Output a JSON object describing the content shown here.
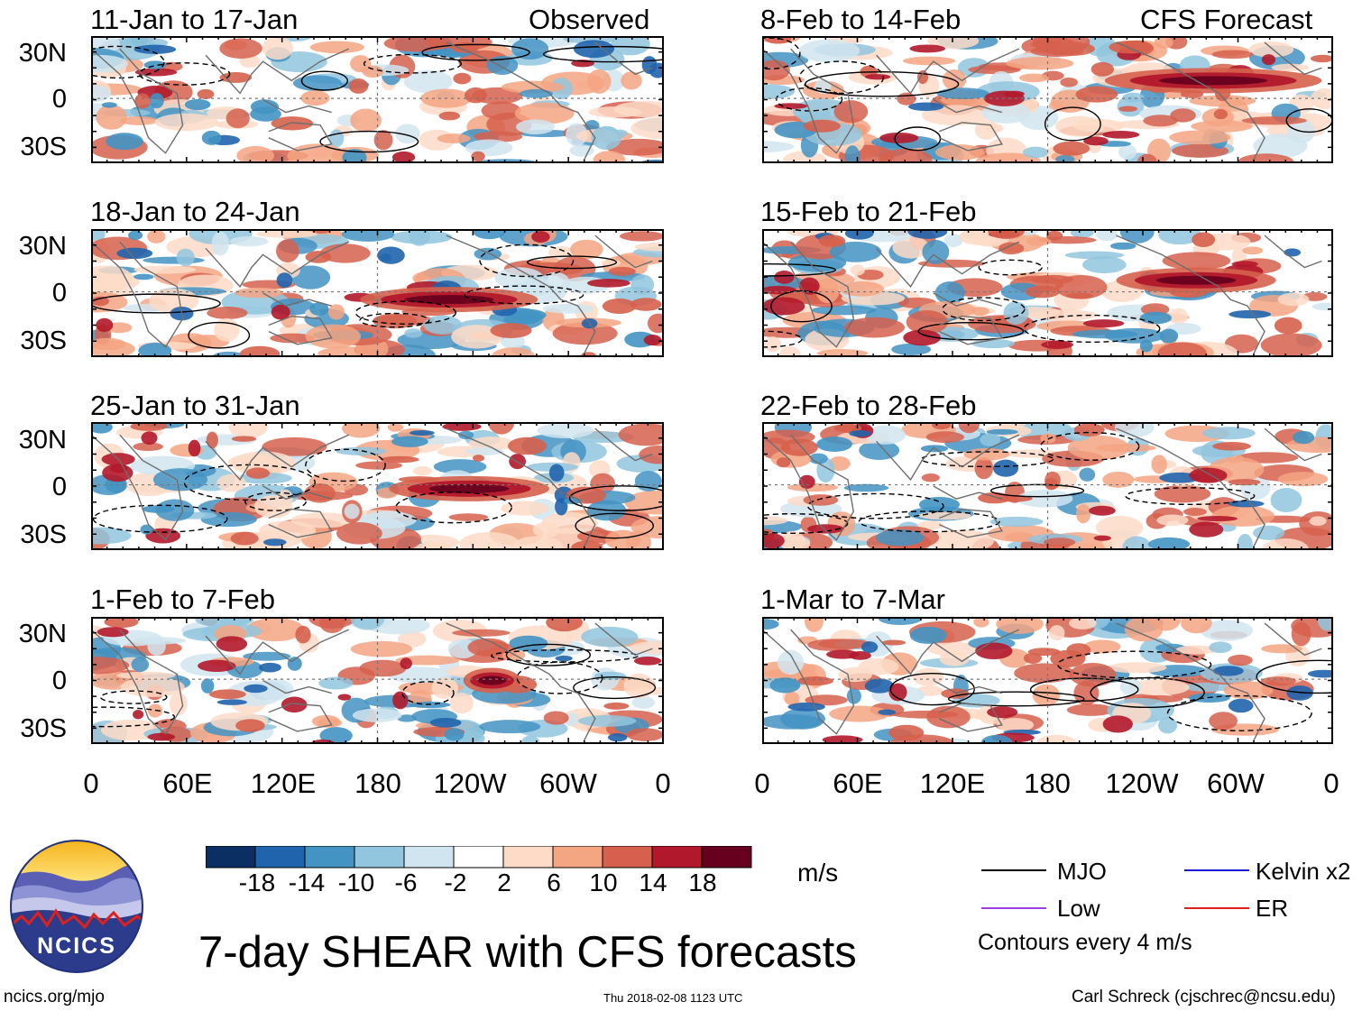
{
  "chart_data": {
    "type": "heatmap",
    "title": "7-day SHEAR with CFS forecasts",
    "left_column_label": "Observed",
    "right_column_label": "CFS Forecast",
    "y_ticks": [
      "30N",
      "0",
      "30S"
    ],
    "x_ticks": [
      "0",
      "60E",
      "120E",
      "180",
      "120W",
      "60W",
      "0"
    ],
    "panels_observed": [
      {
        "title": "11-Jan to 17-Jan"
      },
      {
        "title": "18-Jan to 24-Jan"
      },
      {
        "title": "25-Jan to 31-Jan"
      },
      {
        "title": "1-Feb to 7-Feb"
      }
    ],
    "panels_forecast": [
      {
        "title": "8-Feb to 14-Feb"
      },
      {
        "title": "15-Feb to 21-Feb"
      },
      {
        "title": "22-Feb to 28-Feb"
      },
      {
        "title": "1-Mar to 7-Mar"
      }
    ],
    "colorbar": {
      "ticks": [
        "-18",
        "-14",
        "-10",
        "-6",
        "-2",
        "2",
        "6",
        "10",
        "14",
        "18"
      ],
      "units": "m/s",
      "colors": [
        "#0b2f62",
        "#2064ad",
        "#4393c3",
        "#92c5de",
        "#d1e5f0",
        "#ffffff",
        "#fddbc7",
        "#f4a582",
        "#d6604d",
        "#b2182b",
        "#67001f"
      ]
    },
    "legend": [
      {
        "label": "MJO",
        "color": "#000000"
      },
      {
        "label": "Kelvin x2",
        "color": "#1a1ad6"
      },
      {
        "label": "Low",
        "color": "#9b3fe0"
      },
      {
        "label": "ER",
        "color": "#e0201a"
      }
    ],
    "contour_note": "Contours every 4 m/s"
  },
  "footer": {
    "logo_text": "NCICS",
    "url": "ncics.org/mjo",
    "timestamp": "Thu 2018-02-08 1123 UTC",
    "credit": "Carl Schreck (cjschrec@ncsu.edu)"
  }
}
